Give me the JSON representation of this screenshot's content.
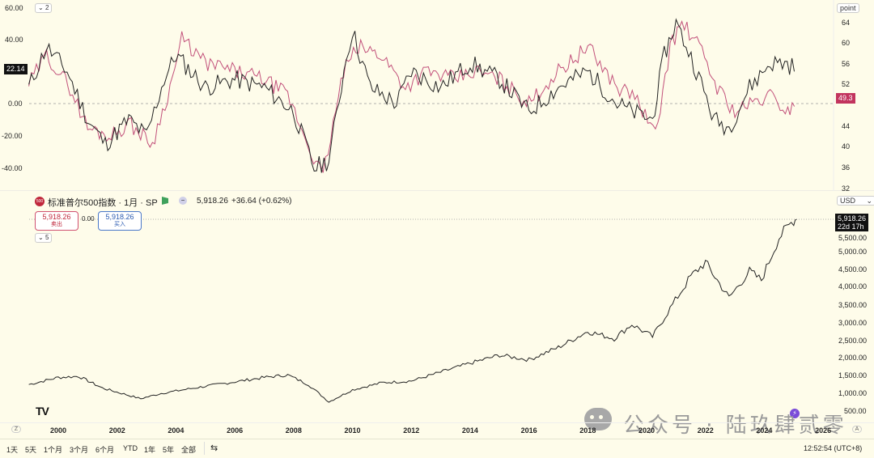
{
  "top_pane": {
    "indicator_collapse": "2",
    "left_ticks": [
      "60.00",
      "40.00",
      "20.00",
      "0.00",
      "-20.00",
      "-40.00"
    ],
    "right_axis_unit": "point",
    "right_ticks": [
      "64",
      "60",
      "56",
      "52",
      "48",
      "44",
      "40",
      "36",
      "32"
    ],
    "left_value_badge": "22.14",
    "right_value_badge": "49.3",
    "colors": {
      "black_series": "#222222",
      "pink_series": "#c2507a",
      "right_badge": "#c2345e"
    }
  },
  "main_pane": {
    "symbol_icon_text": "500",
    "symbol_title": "标准普尔500指数 · 1月 · SP",
    "price": "5,918.26",
    "change": "+36.64 (+0.62%)",
    "sell_price": "5,918.26",
    "sell_label": "卖出",
    "spread": "0.00",
    "buy_price": "5,918.26",
    "buy_label": "买入",
    "indicator_collapse": "5",
    "currency": "USD",
    "price_ticks": [
      "5,500.00",
      "5,000.00",
      "4,500.00",
      "4,000.00",
      "3,500.00",
      "3,000.00",
      "2,500.00",
      "2,000.00",
      "1,500.00",
      "1,000.00",
      "500.00"
    ],
    "last_price_badge": "5,918.26",
    "countdown": "22d 17h",
    "logo": "TV"
  },
  "time_axis": {
    "years": [
      "2000",
      "2002",
      "2004",
      "2006",
      "2008",
      "2010",
      "2012",
      "2014",
      "2016",
      "2018",
      "2020",
      "2022",
      "2024",
      "2026"
    ],
    "left_marker": "Z",
    "right_marker": "A"
  },
  "bottom_bar": {
    "ranges": [
      "1天",
      "5天",
      "1个月",
      "3个月",
      "6个月",
      "YTD",
      "1年",
      "5年",
      "全部"
    ],
    "time": "12:52:54 (UTC+8)"
  },
  "watermark": "公众号 · 陆玖肆贰零",
  "chart_data": {
    "type": "line",
    "title": "标准普尔500指数 · 1月 · SP",
    "x": [
      "2000",
      "2002",
      "2004",
      "2006",
      "2008",
      "2010",
      "2012",
      "2014",
      "2016",
      "2018",
      "2020",
      "2022",
      "2024"
    ],
    "series": [
      {
        "values": [
          1450,
          1100,
          1130,
          1280,
          1400,
          1100,
          1310,
          1850,
          1950,
          2700,
          3200,
          4500,
          4800
        ]
      }
    ],
    "ylim": [
      500,
      6000
    ],
    "last_value": 5918.26
  }
}
